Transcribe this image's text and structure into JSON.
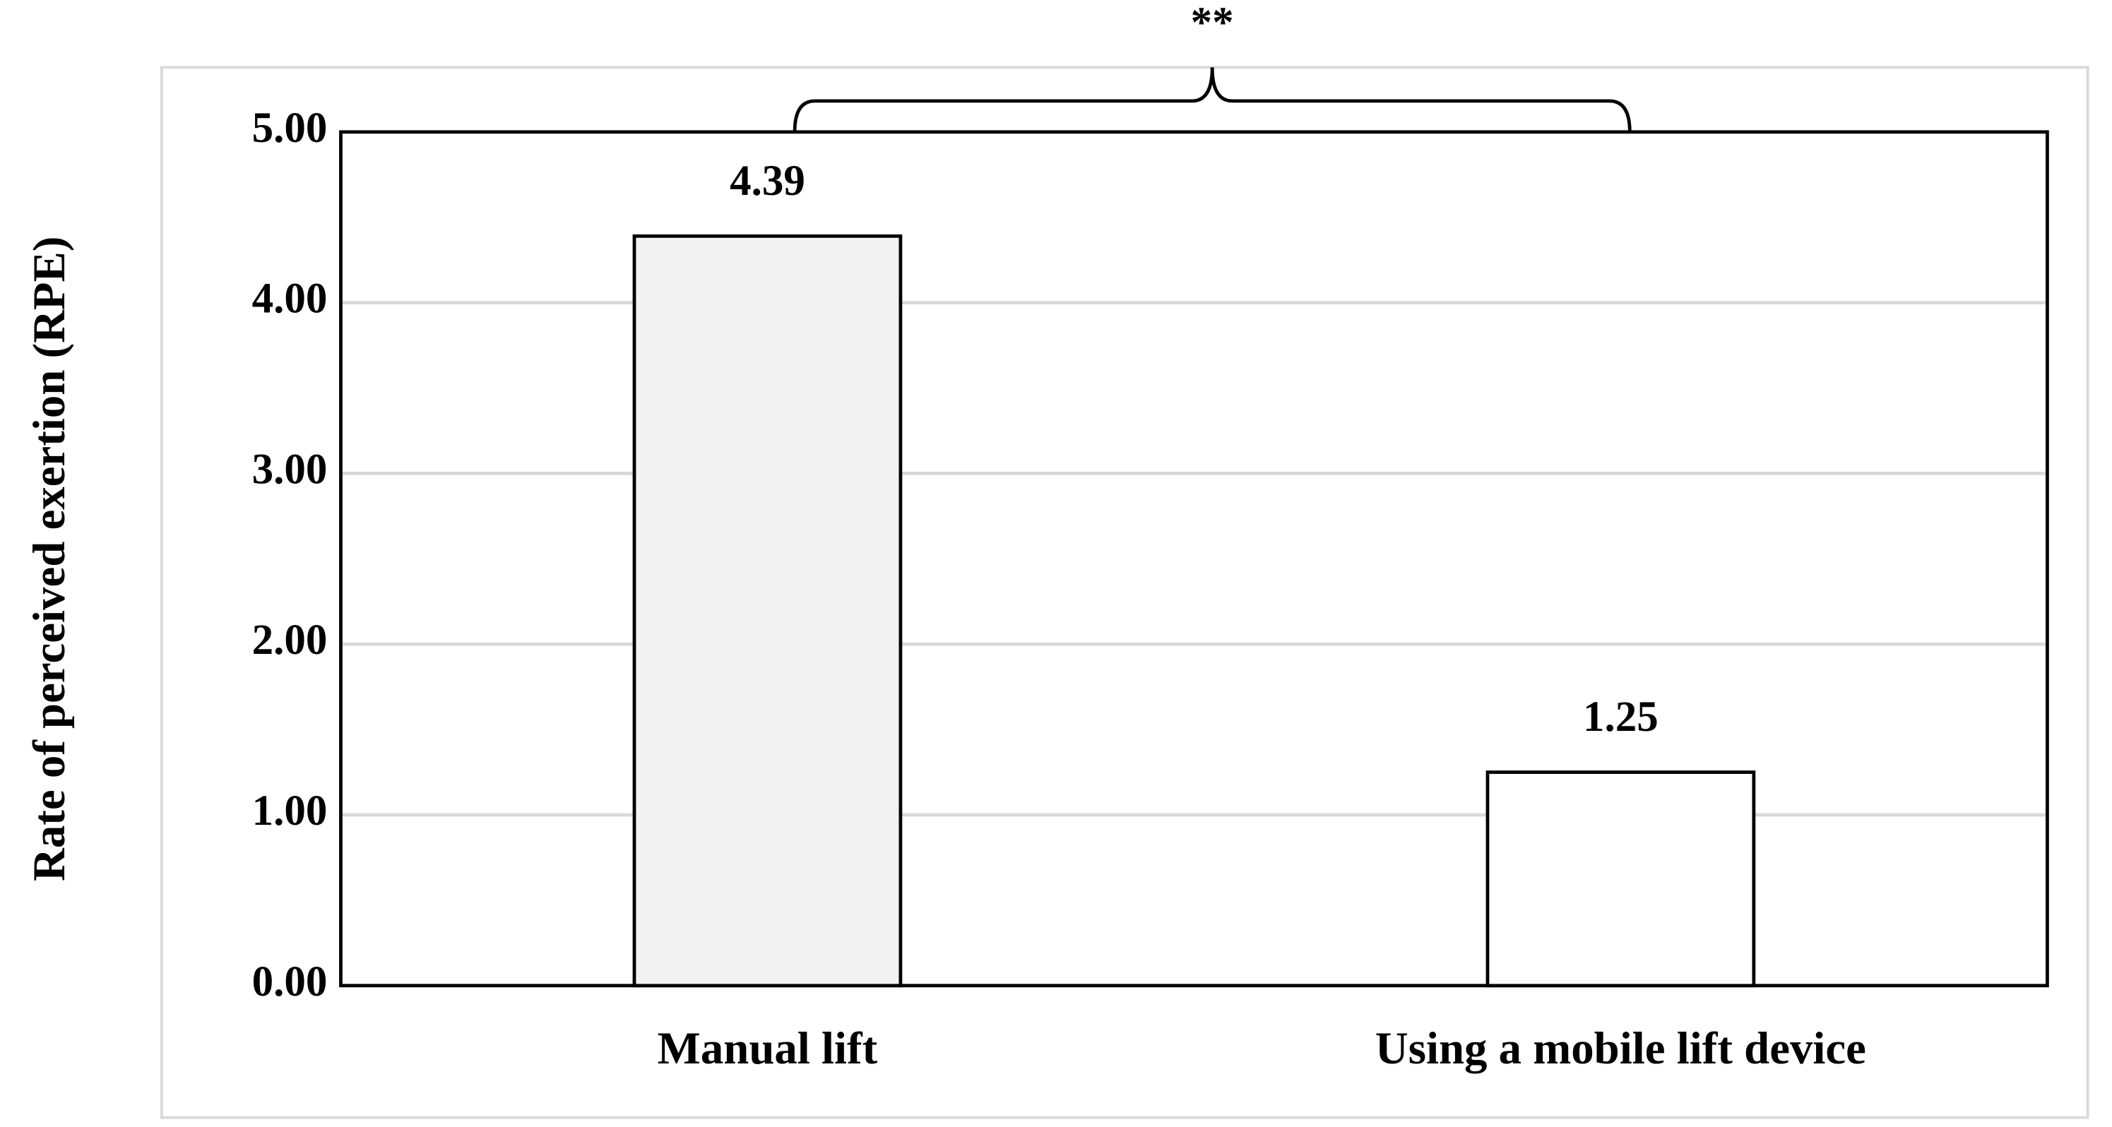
{
  "chart_data": {
    "type": "bar",
    "y_label": "Rate of perceived exertion (RPE)",
    "annotation": "**",
    "categories": [
      "Manual lift",
      "Using a mobile lift device"
    ],
    "values": [
      4.39,
      1.25
    ],
    "colors": [
      "#f2f2f2",
      "#ffffff"
    ],
    "ylim": [
      0,
      5
    ],
    "yticks": [
      {
        "value": 0,
        "label": "0.00"
      },
      {
        "value": 1,
        "label": "1.00"
      },
      {
        "value": 2,
        "label": "2.00"
      },
      {
        "value": 3,
        "label": "3.00"
      },
      {
        "value": 4,
        "label": "4.00"
      },
      {
        "value": 5,
        "label": "5.00"
      }
    ],
    "grid": true
  }
}
